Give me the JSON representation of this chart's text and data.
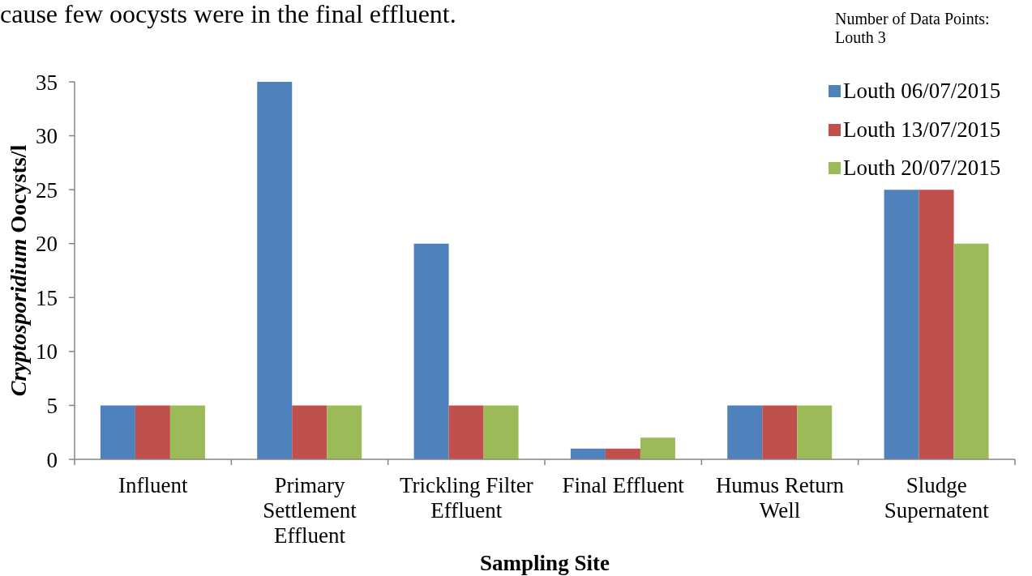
{
  "chart_data": {
    "type": "bar",
    "xlabel": "Sampling Site",
    "ylabel": "Cryptosporidium Oocysts/l",
    "annotations": [
      "cause few oocysts were in the final effluent.",
      "Number of Data Points: Louth 3"
    ],
    "categories": [
      "Influent",
      "Primary Settlement Effluent",
      "Trickling Filter Effluent",
      "Final Effluent",
      "Humus Return Well",
      "Sludge Supernatent"
    ],
    "series": [
      {
        "name": "Louth 06/07/2015",
        "color": "#4f81bd",
        "values": [
          5,
          35,
          20,
          1,
          5,
          25
        ]
      },
      {
        "name": "Louth 13/07/2015",
        "color": "#c0504d",
        "values": [
          5,
          5,
          5,
          1,
          5,
          25
        ]
      },
      {
        "name": "Louth 20/07/2015",
        "color": "#9bbb59",
        "values": [
          5,
          5,
          5,
          2,
          5,
          20
        ]
      }
    ],
    "ylim": [
      0,
      35
    ],
    "yticks": [
      0,
      5,
      10,
      15,
      20,
      25,
      30,
      35
    ],
    "legend": "top right"
  }
}
